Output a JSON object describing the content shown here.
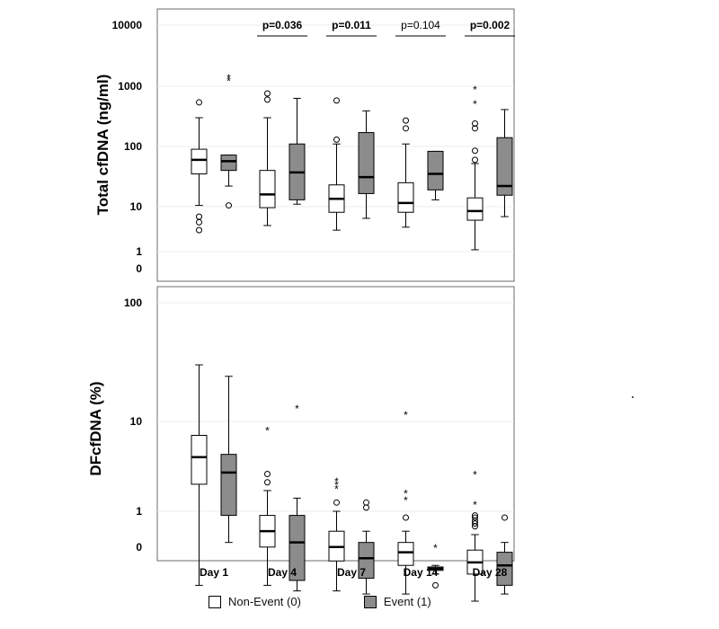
{
  "chart_data": [
    {
      "type": "boxplot",
      "ylabel": "Total cfDNA (ng/ml)",
      "yscale": "log",
      "yticks": [
        "0",
        "1",
        "10",
        "100",
        "1000",
        "10000"
      ],
      "categories": [
        "Day 1",
        "Day 4",
        "Day 7",
        "Day 14",
        "Day 28"
      ],
      "p_values": [
        {
          "label": "p=0.036",
          "category": "Day 4",
          "bold": true
        },
        {
          "label": "p=0.011",
          "category": "Day 7",
          "bold": true
        },
        {
          "label": "p=0.104",
          "category": "Day 14",
          "bold": false
        },
        {
          "label": "p=0.002",
          "category": "Day 28",
          "bold": true
        }
      ],
      "series": [
        {
          "name": "Non-Event (0)",
          "color": "#ffffff",
          "boxes": [
            {
              "category": "Day 1",
              "wlo": 10.5,
              "q1": 35,
              "med": 60,
              "q3": 90,
              "whi": 300,
              "outliers": [
                540,
                6,
                4.5,
                3
              ],
              "extremes": []
            },
            {
              "category": "Day 4",
              "wlo": 3.8,
              "q1": 9.5,
              "med": 16,
              "q3": 40,
              "whi": 300,
              "outliers": [
                760,
                600,
                0.1
              ],
              "extremes": []
            },
            {
              "category": "Day 7",
              "wlo": 3,
              "q1": 7.5,
              "med": 13.5,
              "q3": 23,
              "whi": 110,
              "outliers": [
                580,
                130
              ],
              "extremes": []
            },
            {
              "category": "Day 14",
              "wlo": 3.5,
              "q1": 7.5,
              "med": 11.5,
              "q3": 25,
              "whi": 110,
              "outliers": [
                270,
                200
              ],
              "extremes": []
            },
            {
              "category": "Day 28",
              "wlo": 1.1,
              "q1": 5,
              "med": 8,
              "q3": 14,
              "whi": 52,
              "outliers": [
                240,
                200,
                85,
                60
              ],
              "extremes": [
                900,
                520
              ]
            }
          ]
        },
        {
          "name": "Event (1)",
          "color": "#8c8c8c",
          "boxes": [
            {
              "category": "Day 1",
              "wlo": 22,
              "q1": 40,
              "med": 57,
              "q3": 72,
              "whi": 72,
              "outliers": [
                10.5
              ],
              "extremes": [
                1400,
                1250
              ]
            },
            {
              "category": "Day 4",
              "wlo": 11,
              "q1": 13,
              "med": 37,
              "q3": 110,
              "whi": 630,
              "outliers": [],
              "extremes": []
            },
            {
              "category": "Day 7",
              "wlo": 5.5,
              "q1": 16.5,
              "med": 31,
              "q3": 170,
              "whi": 390,
              "outliers": [],
              "extremes": []
            },
            {
              "category": "Day 14",
              "wlo": 13,
              "q1": 19,
              "med": 35,
              "q3": 83,
              "whi": 83,
              "outliers": [],
              "extremes": []
            },
            {
              "category": "Day 28",
              "wlo": 6,
              "q1": 15.5,
              "med": 22,
              "q3": 140,
              "whi": 410,
              "outliers": [],
              "extremes": []
            }
          ]
        }
      ]
    },
    {
      "type": "boxplot",
      "ylabel": "DFcfDNA (%)",
      "yscale": "log",
      "yticks": [
        "0",
        "1",
        "10",
        "100"
      ],
      "categories": [
        "Day 1",
        "Day 4",
        "Day 7",
        "Day 14",
        "Day 28"
      ],
      "series": [
        {
          "name": "Non-Event (0)",
          "color": "#ffffff",
          "boxes": [
            {
              "category": "Day 1",
              "wlo": 0.15,
              "q1": 2,
              "med": 4,
              "q3": 7,
              "whi": 30,
              "outliers": [],
              "extremes": []
            },
            {
              "category": "Day 4",
              "wlo": 0.15,
              "q1": 0.4,
              "med": 0.6,
              "q3": 0.9,
              "whi": 1.7,
              "outliers": [
                2.6,
                2.1
              ],
              "extremes": [
                8
              ]
            },
            {
              "category": "Day 7",
              "wlo": 0.13,
              "q1": 0.28,
              "med": 0.4,
              "q3": 0.6,
              "whi": 1.0,
              "outliers": [
                1.25
              ],
              "extremes": [
                2.2,
                2.0,
                1.8
              ]
            },
            {
              "category": "Day 14",
              "wlo": 0.12,
              "q1": 0.25,
              "med": 0.35,
              "q3": 0.45,
              "whi": 0.6,
              "outliers": [
                0.85
              ],
              "extremes": [
                11.5,
                1.6,
                1.35
              ]
            },
            {
              "category": "Day 28",
              "wlo": 0.1,
              "q1": 0.2,
              "med": 0.27,
              "q3": 0.37,
              "whi": 0.55,
              "outliers": [
                0.68,
                0.73,
                0.78,
                0.85,
                0.9
              ],
              "extremes": [
                2.6,
                1.2
              ]
            }
          ]
        },
        {
          "name": "Event (1)",
          "color": "#8c8c8c",
          "boxes": [
            {
              "category": "Day 1",
              "wlo": 0.45,
              "q1": 0.9,
              "med": 2.7,
              "q3": 4.3,
              "whi": 24,
              "outliers": [],
              "extremes": []
            },
            {
              "category": "Day 4",
              "wlo": 0.13,
              "q1": 0.17,
              "med": 0.45,
              "q3": 0.9,
              "whi": 1.4,
              "outliers": [],
              "extremes": [
                13
              ]
            },
            {
              "category": "Day 7",
              "wlo": 0.12,
              "q1": 0.18,
              "med": 0.3,
              "q3": 0.45,
              "whi": 0.6,
              "outliers": [
                1.25,
                1.1
              ],
              "extremes": []
            },
            {
              "category": "Day 14",
              "wlo": 0.2,
              "q1": 0.22,
              "med": 0.23,
              "q3": 0.24,
              "whi": 0.25,
              "outliers": [
                0.15
              ],
              "extremes": [
                0.4
              ]
            },
            {
              "category": "Day 28",
              "wlo": 0.12,
              "q1": 0.15,
              "med": 0.25,
              "q3": 0.35,
              "whi": 0.45,
              "outliers": [
                0.85
              ],
              "extremes": []
            }
          ]
        }
      ]
    }
  ],
  "legend": [
    {
      "label": "Non-Event (0)",
      "color": "#ffffff"
    },
    {
      "label": "Event (1)",
      "color": "#8c8c8c"
    }
  ]
}
